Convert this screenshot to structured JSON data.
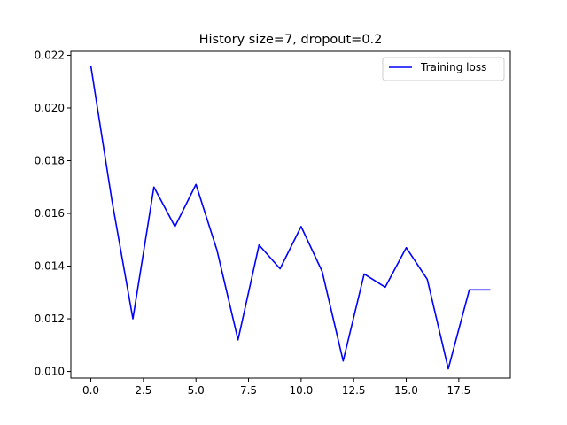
{
  "chart_data": {
    "type": "line",
    "title": "History size=7, dropout=0.2",
    "xlabel": "",
    "ylabel": "",
    "xlim": [
      -0.95,
      19.95
    ],
    "ylim": [
      0.00975,
      0.02215
    ],
    "x_ticks": [
      0.0,
      2.5,
      5.0,
      7.5,
      10.0,
      12.5,
      15.0,
      17.5
    ],
    "x_tick_labels": [
      "0.0",
      "2.5",
      "5.0",
      "7.5",
      "10.0",
      "12.5",
      "15.0",
      "17.5"
    ],
    "y_ticks": [
      0.01,
      0.012,
      0.014,
      0.016,
      0.018,
      0.02,
      0.022
    ],
    "y_tick_labels": [
      "0.010",
      "0.012",
      "0.014",
      "0.016",
      "0.018",
      "0.020",
      "0.022"
    ],
    "grid": false,
    "legend": {
      "position": "top-right",
      "entries": [
        "Training loss"
      ]
    },
    "x": [
      0,
      1,
      2,
      3,
      4,
      5,
      6,
      7,
      8,
      9,
      10,
      11,
      12,
      13,
      14,
      15,
      16,
      17,
      18,
      19
    ],
    "series": [
      {
        "name": "Training loss",
        "color": "#0000ff",
        "values": [
          0.0216,
          0.0165,
          0.012,
          0.017,
          0.0155,
          0.0171,
          0.0146,
          0.0112,
          0.0148,
          0.0139,
          0.0155,
          0.0138,
          0.0104,
          0.0137,
          0.0132,
          0.0147,
          0.0135,
          0.0101,
          0.0131,
          0.0131
        ]
      }
    ]
  }
}
